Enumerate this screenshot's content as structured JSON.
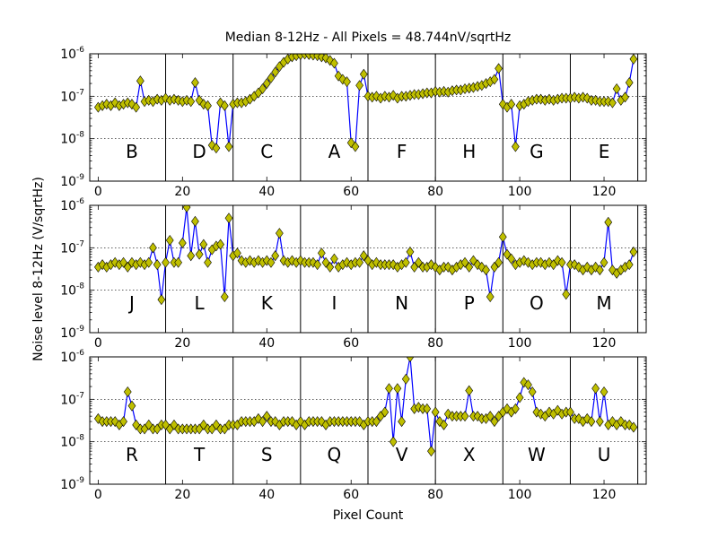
{
  "figure": {
    "title": "Median 8-12Hz - All Pixels = 48.744nV/sqrtHz",
    "xlabel": "Pixel Count",
    "ylabel": "Noise level 8-12Hz (V/sqrtHz)"
  },
  "chart_data": [
    {
      "type": "line",
      "yscale": "log",
      "xlim": [
        -2,
        130
      ],
      "ylim": [
        1e-09,
        1e-06
      ],
      "xticks": [
        "0",
        "20",
        "40",
        "60",
        "80",
        "100",
        "120"
      ],
      "yticks": [
        "10-9",
        "10-8",
        "10-7",
        "10-6"
      ],
      "grid": "y-major-dotted",
      "dividers": [
        16,
        32,
        48,
        64,
        80,
        96,
        112,
        128
      ],
      "segment_labels": [
        "B",
        "D",
        "C",
        "A",
        "F",
        "H",
        "G",
        "E"
      ],
      "series": [
        {
          "x": [
            0,
            1,
            2,
            3,
            4,
            5,
            6,
            7,
            8,
            9,
            10,
            11,
            12,
            13,
            14,
            15,
            16,
            17,
            18,
            19,
            20,
            21,
            22,
            23,
            24,
            25,
            26,
            27,
            28,
            29,
            30,
            31,
            32,
            33,
            34,
            35,
            36,
            37,
            38,
            39,
            40,
            41,
            42,
            43,
            44,
            45,
            46,
            47,
            48,
            49,
            50,
            51,
            52,
            53,
            54,
            55,
            56,
            57,
            58,
            59,
            60,
            61,
            62,
            63,
            64,
            65,
            66,
            67,
            68,
            69,
            70,
            71,
            72,
            73,
            74,
            75,
            76,
            77,
            78,
            79,
            80,
            81,
            82,
            83,
            84,
            85,
            86,
            87,
            88,
            89,
            90,
            91,
            92,
            93,
            94,
            95,
            96,
            97,
            98,
            99,
            100,
            101,
            102,
            103,
            104,
            105,
            106,
            107,
            108,
            109,
            110,
            111,
            112,
            113,
            114,
            115,
            116,
            117,
            118,
            119,
            120,
            121,
            122,
            123,
            124,
            125,
            126,
            127
          ],
          "y": [
            5.5e-08,
            6e-08,
            6.5e-08,
            6e-08,
            7e-08,
            6e-08,
            6.5e-08,
            7e-08,
            6.5e-08,
            5.5e-08,
            2.3e-07,
            7.5e-08,
            8e-08,
            7.5e-08,
            8.5e-08,
            8e-08,
            9e-08,
            8e-08,
            8.5e-08,
            8e-08,
            7.5e-08,
            8e-08,
            7.5e-08,
            2.1e-07,
            8e-08,
            6.5e-08,
            6e-08,
            7e-09,
            6e-09,
            7e-08,
            6e-08,
            6.5e-09,
            6.5e-08,
            7e-08,
            7e-08,
            7.5e-08,
            8.5e-08,
            1e-07,
            1.2e-07,
            1.5e-07,
            2e-07,
            2.7e-07,
            3.7e-07,
            5e-07,
            6.3e-07,
            7.5e-07,
            8.5e-07,
            9e-07,
            9.5e-07,
            9.8e-07,
            9.6e-07,
            9.3e-07,
            9e-07,
            8.5e-07,
            8e-07,
            7e-07,
            6e-07,
            3e-07,
            2.5e-07,
            2.2e-07,
            8e-09,
            6.5e-09,
            1.8e-07,
            3.3e-07,
            1e-07,
            9.5e-08,
            1e-07,
            9e-08,
            1e-07,
            9.5e-08,
            1.05e-07,
            9e-08,
            1e-07,
            1e-07,
            1.05e-07,
            1.1e-07,
            1.1e-07,
            1.15e-07,
            1.2e-07,
            1.2e-07,
            1.3e-07,
            1.25e-07,
            1.3e-07,
            1.25e-07,
            1.35e-07,
            1.4e-07,
            1.4e-07,
            1.5e-07,
            1.55e-07,
            1.6e-07,
            1.7e-07,
            1.8e-07,
            2e-07,
            2.2e-07,
            2.5e-07,
            4.5e-07,
            6.5e-08,
            5.5e-08,
            6.5e-08,
            6.5e-09,
            6e-08,
            6.5e-08,
            7.5e-08,
            8e-08,
            8.5e-08,
            8.5e-08,
            8e-08,
            8.5e-08,
            8e-08,
            8.5e-08,
            9e-08,
            9e-08,
            9e-08,
            9.5e-08,
            9e-08,
            9.5e-08,
            9e-08,
            8e-08,
            8e-08,
            7.5e-08,
            7.5e-08,
            7.5e-08,
            7e-08,
            1.5e-07,
            8e-08,
            9.5e-08,
            2.1e-07,
            7.5e-07
          ]
        }
      ]
    },
    {
      "type": "line",
      "yscale": "log",
      "xlim": [
        -2,
        130
      ],
      "ylim": [
        1e-09,
        1e-06
      ],
      "xticks": [
        "0",
        "20",
        "40",
        "60",
        "80",
        "100",
        "120"
      ],
      "yticks": [
        "10-9",
        "10-8",
        "10-7",
        "10-6"
      ],
      "grid": "y-major-dotted",
      "dividers": [
        16,
        32,
        48,
        64,
        80,
        96,
        112,
        128
      ],
      "segment_labels": [
        "J",
        "L",
        "K",
        "I",
        "N",
        "P",
        "O",
        "M"
      ],
      "series": [
        {
          "x": [
            0,
            1,
            2,
            3,
            4,
            5,
            6,
            7,
            8,
            9,
            10,
            11,
            12,
            13,
            14,
            15,
            16,
            17,
            18,
            19,
            20,
            21,
            22,
            23,
            24,
            25,
            26,
            27,
            28,
            29,
            30,
            31,
            32,
            33,
            34,
            35,
            36,
            37,
            38,
            39,
            40,
            41,
            42,
            43,
            44,
            45,
            46,
            47,
            48,
            49,
            50,
            51,
            52,
            53,
            54,
            55,
            56,
            57,
            58,
            59,
            60,
            61,
            62,
            63,
            64,
            65,
            66,
            67,
            68,
            69,
            70,
            71,
            72,
            73,
            74,
            75,
            76,
            77,
            78,
            79,
            80,
            81,
            82,
            83,
            84,
            85,
            86,
            87,
            88,
            89,
            90,
            91,
            92,
            93,
            94,
            95,
            96,
            97,
            98,
            99,
            100,
            101,
            102,
            103,
            104,
            105,
            106,
            107,
            108,
            109,
            110,
            111,
            112,
            113,
            114,
            115,
            116,
            117,
            118,
            119,
            120,
            121,
            122,
            123,
            124,
            125,
            126,
            127
          ],
          "y": [
            3.5e-08,
            4e-08,
            3.5e-08,
            4e-08,
            4.5e-08,
            4e-08,
            4.5e-08,
            3.5e-08,
            4.5e-08,
            4e-08,
            4.5e-08,
            4e-08,
            4.5e-08,
            1e-07,
            4e-08,
            6e-09,
            4.5e-08,
            1.5e-07,
            4.5e-08,
            4.5e-08,
            1.3e-07,
            9e-07,
            6.5e-08,
            4.2e-07,
            7e-08,
            1.2e-07,
            4.5e-08,
            9e-08,
            1.1e-07,
            1.2e-07,
            7e-09,
            5e-07,
            6.5e-08,
            7.5e-08,
            5e-08,
            4.5e-08,
            5e-08,
            4.5e-08,
            5e-08,
            4.5e-08,
            5e-08,
            4.5e-08,
            6.5e-08,
            2.2e-07,
            5e-08,
            4.5e-08,
            5e-08,
            4.5e-08,
            5e-08,
            4.5e-08,
            4.5e-08,
            4.5e-08,
            4e-08,
            7.5e-08,
            4.5e-08,
            3.5e-08,
            5.5e-08,
            3.5e-08,
            4e-08,
            4.5e-08,
            4e-08,
            4.5e-08,
            4.5e-08,
            6.5e-08,
            5e-08,
            4e-08,
            4.5e-08,
            4e-08,
            4e-08,
            4e-08,
            4e-08,
            3.5e-08,
            4e-08,
            4.5e-08,
            8e-08,
            3.5e-08,
            4.5e-08,
            3.5e-08,
            3.5e-08,
            4e-08,
            3.5e-08,
            3e-08,
            3.5e-08,
            3.5e-08,
            3e-08,
            3.5e-08,
            4e-08,
            4.5e-08,
            3.5e-08,
            5e-08,
            4e-08,
            3.5e-08,
            3e-08,
            7e-09,
            3.5e-08,
            4.5e-08,
            1.8e-07,
            7e-08,
            5.5e-08,
            4e-08,
            4.5e-08,
            5e-08,
            4.5e-08,
            4e-08,
            4.5e-08,
            4.5e-08,
            4e-08,
            4.5e-08,
            4e-08,
            5e-08,
            4.5e-08,
            8e-09,
            4e-08,
            4e-08,
            3.5e-08,
            3e-08,
            3.5e-08,
            3e-08,
            3.5e-08,
            3e-08,
            4.5e-08,
            4e-07,
            3e-08,
            2.5e-08,
            3e-08,
            3.5e-08,
            4e-08,
            8e-08
          ]
        }
      ]
    },
    {
      "type": "line",
      "yscale": "log",
      "xlim": [
        -2,
        130
      ],
      "ylim": [
        1e-09,
        1e-06
      ],
      "xticks": [
        "0",
        "20",
        "40",
        "60",
        "80",
        "100",
        "120"
      ],
      "yticks": [
        "10-9",
        "10-8",
        "10-7",
        "10-6"
      ],
      "grid": "y-major-dotted",
      "dividers": [
        16,
        32,
        48,
        64,
        80,
        96,
        112,
        128
      ],
      "segment_labels": [
        "R",
        "T",
        "S",
        "Q",
        "V",
        "X",
        "W",
        "U"
      ],
      "series": [
        {
          "x": [
            0,
            1,
            2,
            3,
            4,
            5,
            6,
            7,
            8,
            9,
            10,
            11,
            12,
            13,
            14,
            15,
            16,
            17,
            18,
            19,
            20,
            21,
            22,
            23,
            24,
            25,
            26,
            27,
            28,
            29,
            30,
            31,
            32,
            33,
            34,
            35,
            36,
            37,
            38,
            39,
            40,
            41,
            42,
            43,
            44,
            45,
            46,
            47,
            48,
            49,
            50,
            51,
            52,
            53,
            54,
            55,
            56,
            57,
            58,
            59,
            60,
            61,
            62,
            63,
            64,
            65,
            66,
            67,
            68,
            69,
            70,
            71,
            72,
            73,
            74,
            75,
            76,
            77,
            78,
            79,
            80,
            81,
            82,
            83,
            84,
            85,
            86,
            87,
            88,
            89,
            90,
            91,
            92,
            93,
            94,
            95,
            96,
            97,
            98,
            99,
            100,
            101,
            102,
            103,
            104,
            105,
            106,
            107,
            108,
            109,
            110,
            111,
            112,
            113,
            114,
            115,
            116,
            117,
            118,
            119,
            120,
            121,
            122,
            123,
            124,
            125,
            126,
            127
          ],
          "y": [
            3.5e-08,
            3e-08,
            3e-08,
            3e-08,
            3e-08,
            2.5e-08,
            3e-08,
            1.5e-07,
            7e-08,
            2.5e-08,
            2e-08,
            2e-08,
            2.5e-08,
            2e-08,
            2e-08,
            2.5e-08,
            2.5e-08,
            2e-08,
            2.5e-08,
            2e-08,
            2e-08,
            2e-08,
            2e-08,
            2e-08,
            2e-08,
            2.5e-08,
            2e-08,
            2e-08,
            2.5e-08,
            2e-08,
            2e-08,
            2.5e-08,
            2.5e-08,
            2.5e-08,
            3e-08,
            3e-08,
            3e-08,
            3e-08,
            3.5e-08,
            3e-08,
            4e-08,
            3e-08,
            3e-08,
            2.5e-08,
            3e-08,
            3e-08,
            3e-08,
            2.5e-08,
            3e-08,
            2.5e-08,
            3e-08,
            3e-08,
            3e-08,
            3e-08,
            2.5e-08,
            3e-08,
            3e-08,
            3e-08,
            3e-08,
            3e-08,
            3e-08,
            3e-08,
            3e-08,
            2.5e-08,
            3e-08,
            3e-08,
            3e-08,
            4e-08,
            5e-08,
            1.8e-07,
            1e-08,
            1.8e-07,
            3e-08,
            3e-07,
            1.2e-06,
            6e-08,
            6.5e-08,
            6e-08,
            6e-08,
            6e-09,
            5e-08,
            3e-08,
            2.5e-08,
            4.5e-08,
            4e-08,
            4e-08,
            4e-08,
            4e-08,
            1.6e-07,
            4e-08,
            4e-08,
            3.5e-08,
            3.5e-08,
            4e-08,
            3e-08,
            4e-08,
            5e-08,
            6e-08,
            5e-08,
            6e-08,
            1.1e-07,
            2.5e-07,
            2.2e-07,
            1.5e-07,
            5e-08,
            4.5e-08,
            4e-08,
            5e-08,
            4.5e-08,
            5.5e-08,
            4.5e-08,
            5e-08,
            5e-08,
            3.5e-08,
            3.5e-08,
            3e-08,
            3.5e-08,
            3e-08,
            1.8e-07,
            3e-08,
            1.5e-07,
            2.5e-08,
            3e-08,
            2.5e-08,
            3e-08,
            2.5e-08,
            2.5e-08,
            2.2e-08
          ]
        }
      ]
    }
  ]
}
